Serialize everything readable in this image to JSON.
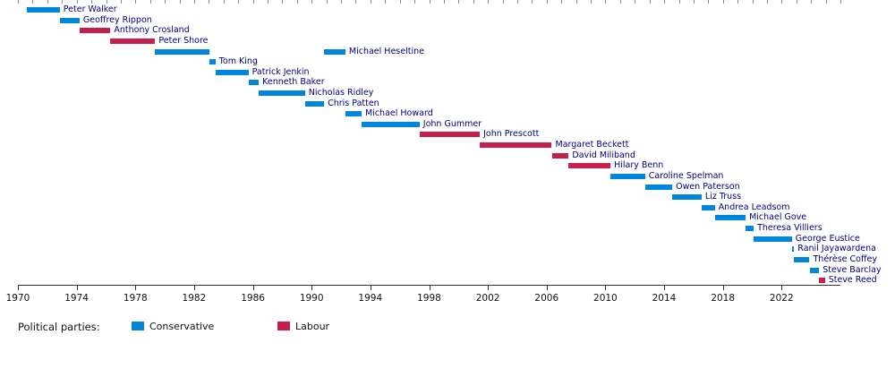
{
  "chart_data": {
    "type": "bar",
    "subtype": "horizontal-timeline-gantt",
    "title": "",
    "xlabel": "",
    "ylabel": "",
    "grid": false,
    "legend_position": "bottom",
    "x_axis": {
      "min": 1970,
      "max": 2026,
      "major_ticks": [
        1970,
        1974,
        1978,
        1982,
        1986,
        1990,
        1994,
        1998,
        2002,
        2006,
        2010,
        2014,
        2018,
        2022
      ],
      "minor_tick_step": 1
    },
    "party_colors": {
      "Conservative": "#0087DC",
      "Labour": "#C71F4D"
    },
    "rows": [
      {
        "label": "Peter Walker",
        "party": "Conservative",
        "terms": [
          {
            "start": 1970.6,
            "end": 1972.85
          }
        ]
      },
      {
        "label": "Geoffrey Rippon",
        "party": "Conservative",
        "terms": [
          {
            "start": 1972.85,
            "end": 1974.2
          }
        ]
      },
      {
        "label": "Anthony Crosland",
        "party": "Labour",
        "terms": [
          {
            "start": 1974.2,
            "end": 1976.3
          }
        ]
      },
      {
        "label": "Peter Shore",
        "party": "Labour",
        "terms": [
          {
            "start": 1976.3,
            "end": 1979.35
          }
        ]
      },
      {
        "label": "Michael Heseltine",
        "party": "Conservative",
        "terms": [
          {
            "start": 1979.35,
            "end": 1983.05
          },
          {
            "start": 1990.85,
            "end": 1992.3
          }
        ]
      },
      {
        "label": "Tom King",
        "party": "Conservative",
        "terms": [
          {
            "start": 1983.05,
            "end": 1983.45
          }
        ]
      },
      {
        "label": "Patrick Jenkin",
        "party": "Conservative",
        "terms": [
          {
            "start": 1983.45,
            "end": 1985.7
          }
        ]
      },
      {
        "label": "Kenneth Baker",
        "party": "Conservative",
        "terms": [
          {
            "start": 1985.7,
            "end": 1986.4
          }
        ]
      },
      {
        "label": "Nicholas Ridley",
        "party": "Conservative",
        "terms": [
          {
            "start": 1986.4,
            "end": 1989.55
          }
        ]
      },
      {
        "label": "Chris Patten",
        "party": "Conservative",
        "terms": [
          {
            "start": 1989.55,
            "end": 1990.85
          }
        ]
      },
      {
        "label": "Michael Howard",
        "party": "Conservative",
        "terms": [
          {
            "start": 1992.3,
            "end": 1993.4
          }
        ]
      },
      {
        "label": "John Gummer",
        "party": "Conservative",
        "terms": [
          {
            "start": 1993.4,
            "end": 1997.35
          }
        ]
      },
      {
        "label": "John Prescott",
        "party": "Labour",
        "terms": [
          {
            "start": 1997.35,
            "end": 2001.45
          }
        ]
      },
      {
        "label": "Margaret Beckett",
        "party": "Labour",
        "terms": [
          {
            "start": 2001.45,
            "end": 2006.35
          }
        ]
      },
      {
        "label": "David Miliband",
        "party": "Labour",
        "terms": [
          {
            "start": 2006.35,
            "end": 2007.5
          }
        ]
      },
      {
        "label": "Hilary Benn",
        "party": "Labour",
        "terms": [
          {
            "start": 2007.5,
            "end": 2010.35
          }
        ]
      },
      {
        "label": "Caroline Spelman",
        "party": "Conservative",
        "terms": [
          {
            "start": 2010.35,
            "end": 2012.7
          }
        ]
      },
      {
        "label": "Owen Paterson",
        "party": "Conservative",
        "terms": [
          {
            "start": 2012.7,
            "end": 2014.55
          }
        ]
      },
      {
        "label": "Liz Truss",
        "party": "Conservative",
        "terms": [
          {
            "start": 2014.55,
            "end": 2016.55
          }
        ]
      },
      {
        "label": "Andrea Leadsom",
        "party": "Conservative",
        "terms": [
          {
            "start": 2016.55,
            "end": 2017.45
          }
        ]
      },
      {
        "label": "Michael Gove",
        "party": "Conservative",
        "terms": [
          {
            "start": 2017.45,
            "end": 2019.55
          }
        ]
      },
      {
        "label": "Theresa Villiers",
        "party": "Conservative",
        "terms": [
          {
            "start": 2019.55,
            "end": 2020.1
          }
        ]
      },
      {
        "label": "George Eustice",
        "party": "Conservative",
        "terms": [
          {
            "start": 2020.1,
            "end": 2022.7
          }
        ]
      },
      {
        "label": "Ranil Jayawardena",
        "party": "Conservative",
        "terms": [
          {
            "start": 2022.7,
            "end": 2022.85
          }
        ]
      },
      {
        "label": "Thérèse Coffey",
        "party": "Conservative",
        "terms": [
          {
            "start": 2022.85,
            "end": 2023.9
          }
        ]
      },
      {
        "label": "Steve Barclay",
        "party": "Conservative",
        "terms": [
          {
            "start": 2023.9,
            "end": 2024.55
          }
        ]
      },
      {
        "label": "Steve Reed",
        "party": "Labour",
        "terms": [
          {
            "start": 2024.55,
            "end": 2024.95
          }
        ]
      }
    ],
    "legend": {
      "title": "Political parties:",
      "entries": [
        {
          "label": "Conservative",
          "color": "#0087DC"
        },
        {
          "label": "Labour",
          "color": "#C71F4D"
        }
      ]
    }
  }
}
